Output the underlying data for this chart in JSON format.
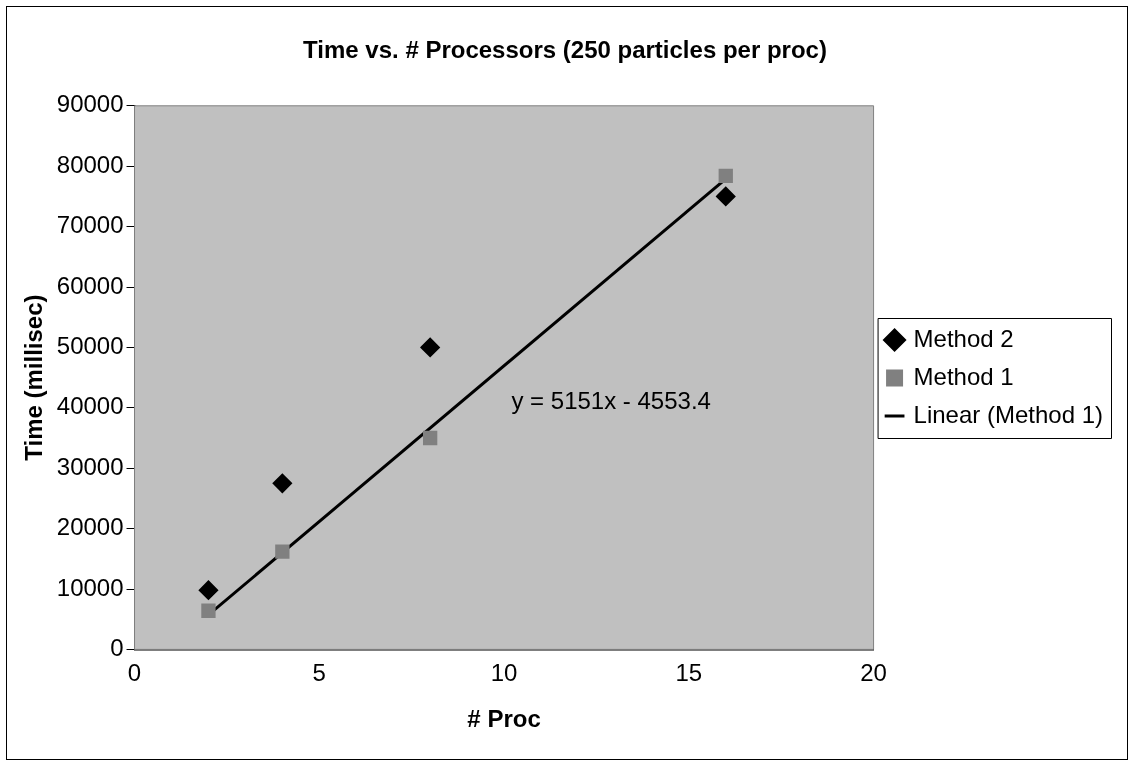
{
  "chart_data": {
    "type": "scatter",
    "title": "Time vs. # Processors (250 particles per proc)",
    "xlabel": "# Proc",
    "ylabel": "Time (millisec)",
    "x": [
      2,
      4,
      8,
      16
    ],
    "series": [
      {
        "name": "Method 2",
        "color": "#000000",
        "marker": "diamond",
        "values": [
          9800,
          27500,
          50000,
          75000
        ]
      },
      {
        "name": "Method 1",
        "color": "#808080",
        "marker": "square",
        "values": [
          6400,
          16200,
          35000,
          78400
        ]
      },
      {
        "name": "Linear (Method 1)",
        "type": "line",
        "color": "#000000",
        "marker": "none",
        "x": [
          2,
          16
        ],
        "values": [
          5700,
          77900
        ]
      }
    ],
    "xlim": [
      0,
      20
    ],
    "xticks": [
      0,
      5,
      10,
      15,
      20
    ],
    "ylim": [
      0,
      90000
    ],
    "yticks": [
      0,
      10000,
      20000,
      30000,
      40000,
      50000,
      60000,
      70000,
      80000,
      90000
    ],
    "grid": false,
    "legend": "right",
    "annotations": [
      "y = 5151x - 4553.4"
    ]
  }
}
